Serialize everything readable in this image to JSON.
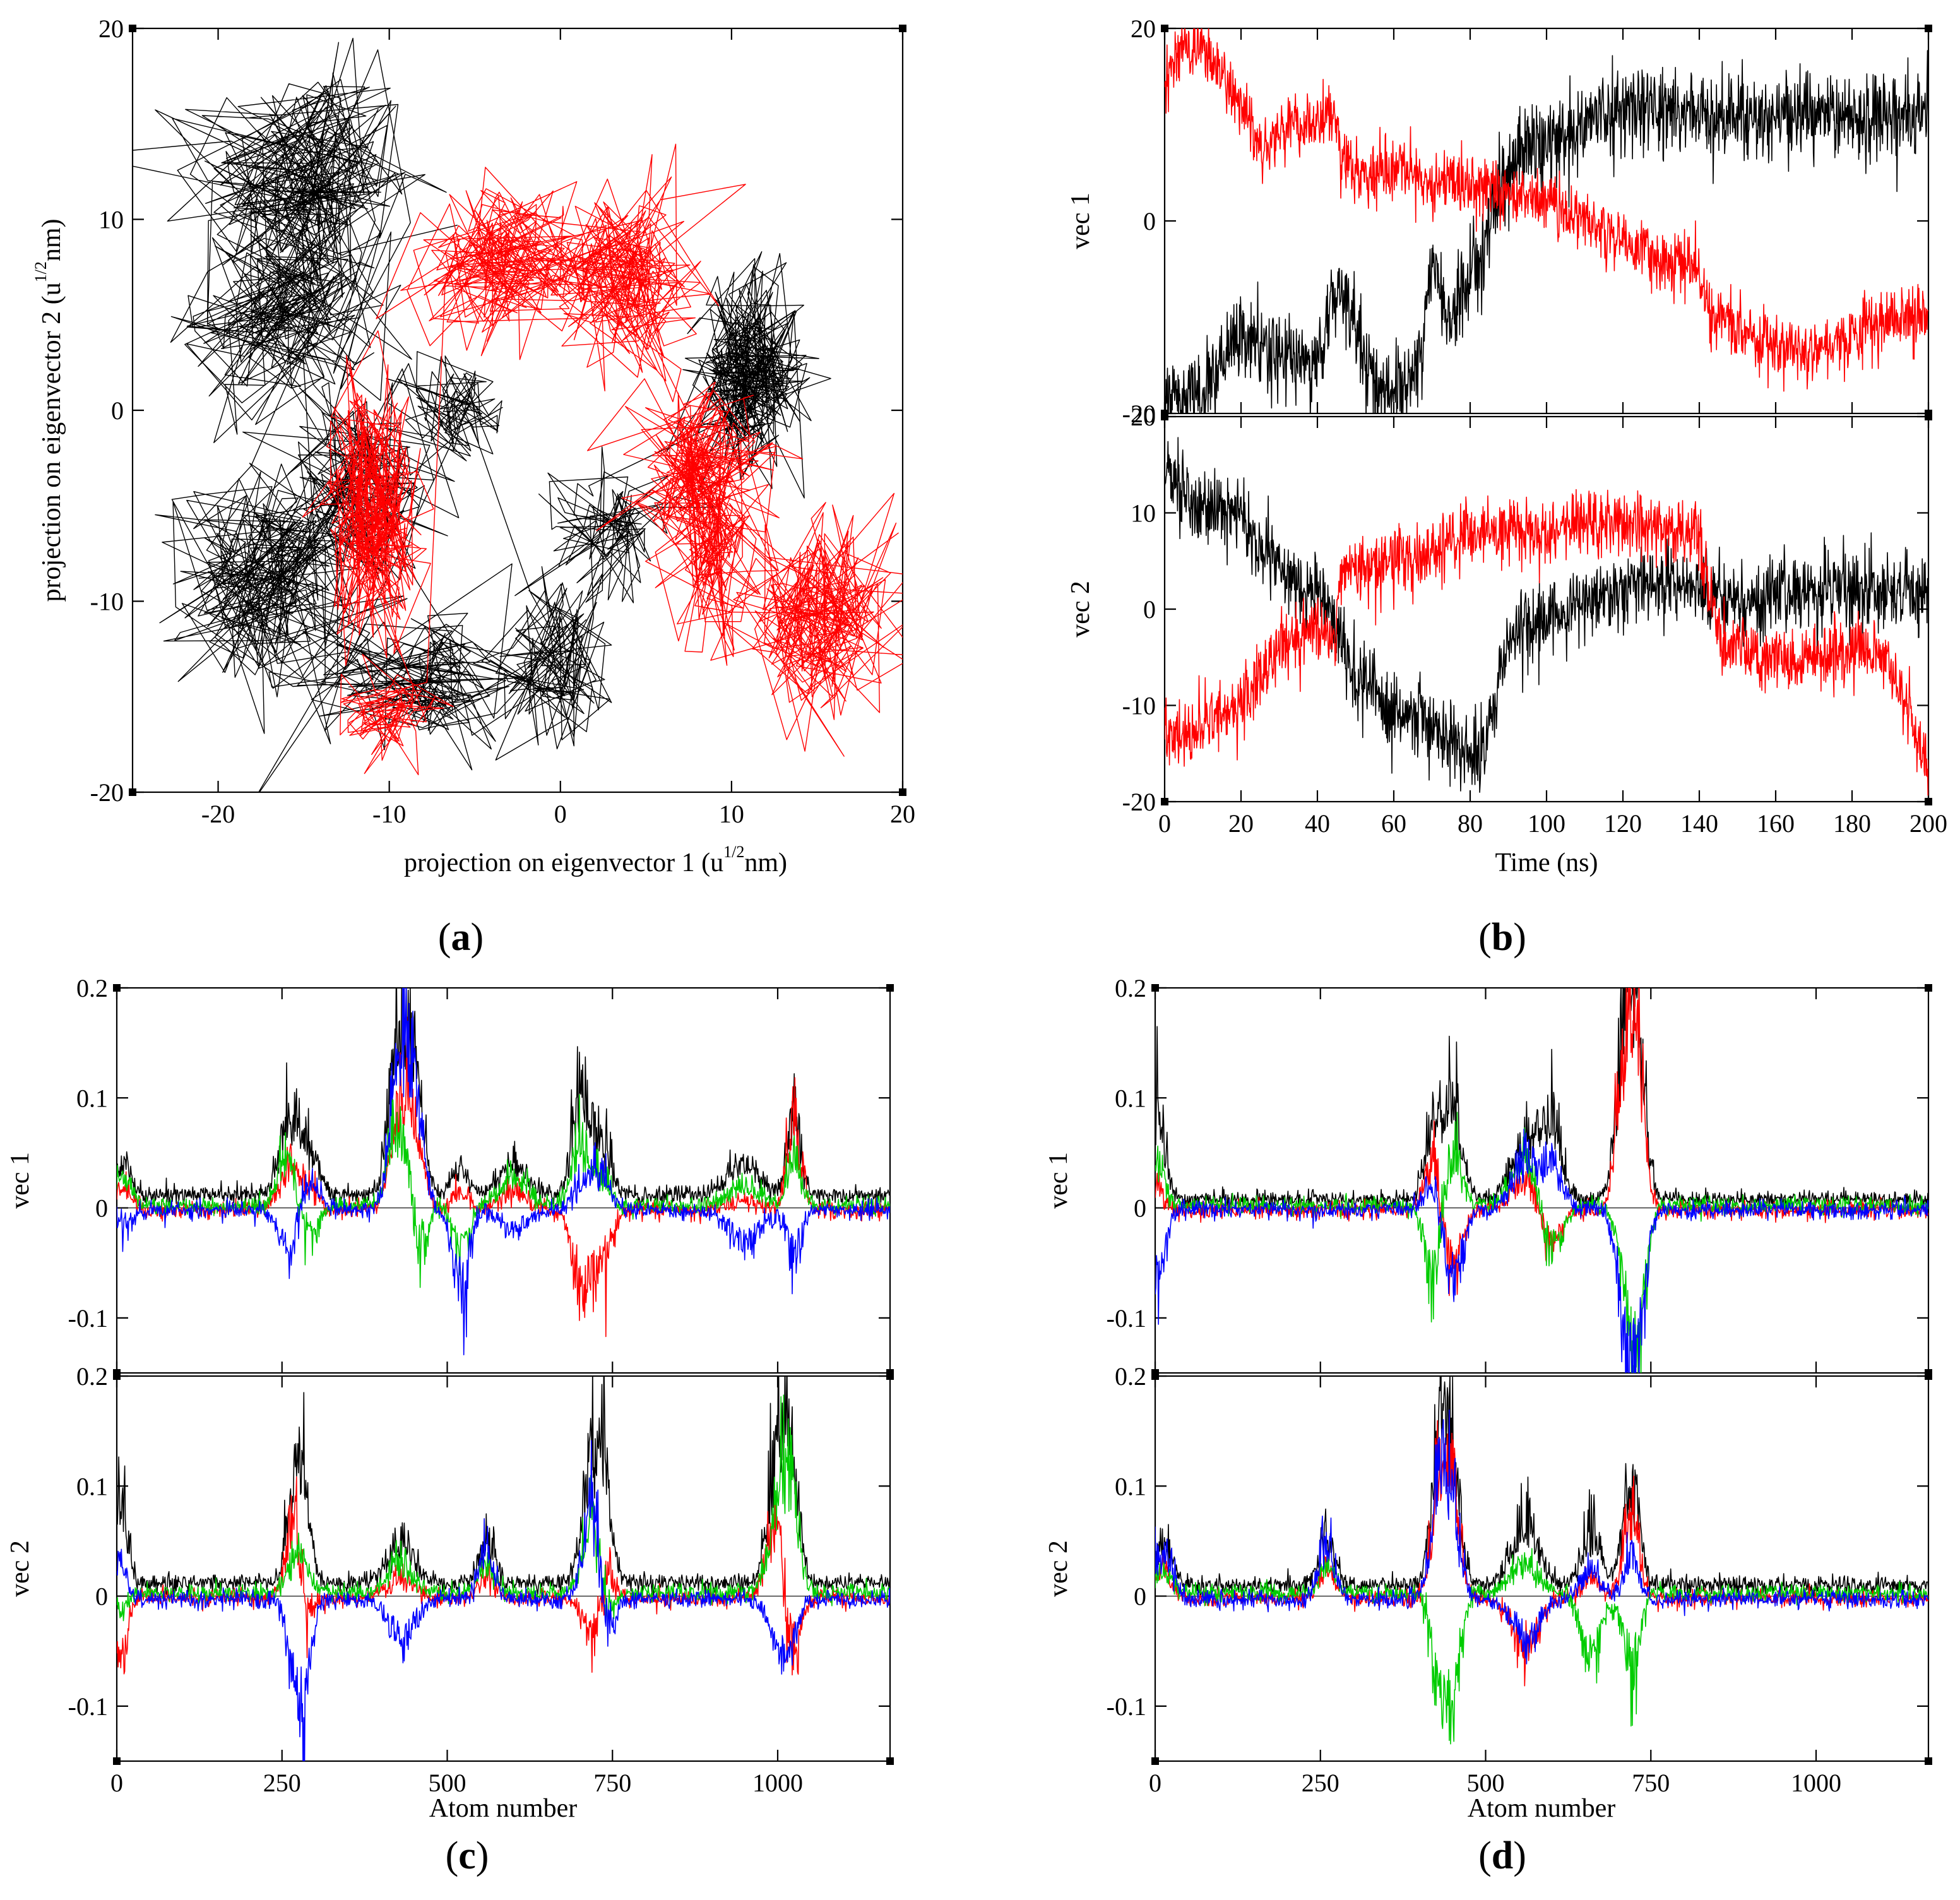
{
  "colors": {
    "black": "#000000",
    "red": "#ff0000",
    "green": "#00cc00",
    "blue": "#0000ff"
  },
  "chart_data": [
    {
      "panel": "(a)",
      "panel_letter": "a",
      "type": "scatter",
      "xlabel": "projection on eigenvector 1 (u",
      "xlabel_sup": "1/2",
      "xlabel_tail": "nm)",
      "ylabel": "projection on eigenvector 2 (u",
      "ylabel_sup": "1/2",
      "ylabel_tail": "nm)",
      "xlim": [
        -25,
        20
      ],
      "ylim": [
        -20,
        20
      ],
      "xticks": [
        -20,
        -10,
        0,
        10,
        20
      ],
      "yticks": [
        -20,
        -10,
        0,
        10,
        20
      ],
      "series": [
        {
          "color": "#000000",
          "clusters": [
            {
              "cx": -15,
              "cy": 12,
              "sx": 3.6,
              "sy": 3.5,
              "n": 260
            },
            {
              "cx": -16,
              "cy": 5,
              "sx": 3.0,
              "sy": 2.6,
              "n": 200
            },
            {
              "cx": -17,
              "cy": -9,
              "sx": 3.0,
              "sy": 3.2,
              "n": 240
            },
            {
              "cx": -12,
              "cy": -4,
              "sx": 3.0,
              "sy": 3.0,
              "n": 140
            },
            {
              "cx": -8,
              "cy": -14,
              "sx": 3.2,
              "sy": 2.0,
              "n": 150
            },
            {
              "cx": -6,
              "cy": 0,
              "sx": 2.0,
              "sy": 1.6,
              "n": 80
            },
            {
              "cx": 0,
              "cy": -13,
              "sx": 2.0,
              "sy": 2.5,
              "n": 120
            },
            {
              "cx": 3,
              "cy": -6,
              "sx": 2.0,
              "sy": 2.0,
              "n": 90
            },
            {
              "cx": 11,
              "cy": 2,
              "sx": 1.8,
              "sy": 2.6,
              "n": 300
            }
          ]
        },
        {
          "color": "#ff0000",
          "clusters": [
            {
              "cx": -11,
              "cy": -5,
              "sx": 1.5,
              "sy": 3.5,
              "n": 260
            },
            {
              "cx": -10,
              "cy": -16,
              "sx": 1.5,
              "sy": 1.3,
              "n": 90
            },
            {
              "cx": -3,
              "cy": 8,
              "sx": 3.0,
              "sy": 2.2,
              "n": 220
            },
            {
              "cx": 4,
              "cy": 7,
              "sx": 2.2,
              "sy": 2.6,
              "n": 200
            },
            {
              "cx": 8,
              "cy": -3,
              "sx": 2.2,
              "sy": 2.2,
              "n": 200
            },
            {
              "cx": 9,
              "cy": -7,
              "sx": 1.8,
              "sy": 3.0,
              "n": 120
            },
            {
              "cx": 15,
              "cy": -11,
              "sx": 2.6,
              "sy": 2.6,
              "n": 220
            }
          ]
        }
      ]
    },
    {
      "panel": "(b)",
      "panel_letter": "b",
      "type": "line",
      "xlabel": "Time (ns)",
      "xlim": [
        0,
        200
      ],
      "xticks": [
        0,
        20,
        40,
        60,
        80,
        100,
        120,
        140,
        160,
        180,
        200
      ],
      "subplots": [
        {
          "ylabel": "vec 1",
          "ylim": [
            -20,
            20
          ],
          "yticks": [
            -20,
            0,
            20
          ],
          "series": [
            {
              "color": "#000000",
              "noise": 2.2,
              "x": [
                0,
                10,
                20,
                30,
                40,
                43,
                46,
                50,
                55,
                60,
                65,
                68,
                70,
                75,
                80,
                85,
                90,
                95,
                100,
                110,
                120,
                125,
                140,
                160,
                180,
                200
              ],
              "y": [
                -19,
                -18,
                -12,
                -14,
                -15,
                -10,
                -6,
                -11,
                -17,
                -18,
                -16,
                -12,
                -4,
                -11,
                -6,
                0,
                5,
                8,
                8,
                10,
                12,
                12,
                11,
                11,
                11,
                11
              ]
            },
            {
              "color": "#ff0000",
              "noise": 1.6,
              "x": [
                0,
                5,
                10,
                20,
                25,
                30,
                35,
                40,
                45,
                46,
                50,
                60,
                70,
                80,
                90,
                100,
                110,
                120,
                130,
                140,
                142,
                144,
                150,
                160,
                170,
                180,
                190,
                200
              ],
              "y": [
                15,
                18,
                18,
                12,
                8,
                9,
                10,
                10,
                11,
                6,
                5,
                5,
                4,
                4,
                3,
                2,
                0,
                -2,
                -4,
                -5,
                -9,
                -10,
                -11,
                -13,
                -13,
                -12,
                -10,
                -10
              ]
            }
          ]
        },
        {
          "ylabel": "vec 2",
          "ylim": [
            -20,
            20
          ],
          "yticks": [
            -20,
            -10,
            0,
            10,
            20
          ],
          "series": [
            {
              "color": "#000000",
              "noise": 2.0,
              "x": [
                0,
                5,
                10,
                20,
                25,
                30,
                40,
                45,
                50,
                60,
                70,
                80,
                83,
                86,
                90,
                100,
                110,
                120,
                130,
                140,
                150,
                160,
                170,
                180,
                190,
                200
              ],
              "y": [
                15,
                12,
                10,
                10,
                6,
                4,
                2,
                -2,
                -7,
                -11,
                -12,
                -15,
                -14,
                -10,
                -3,
                -1,
                1,
                2,
                3,
                2,
                1,
                1,
                2,
                2,
                2,
                1
              ]
            },
            {
              "color": "#ff0000",
              "noise": 1.8,
              "x": [
                0,
                5,
                10,
                20,
                30,
                40,
                45,
                46,
                50,
                60,
                70,
                80,
                90,
                100,
                110,
                120,
                130,
                140,
                142,
                145,
                150,
                160,
                170,
                180,
                185,
                190,
                195,
                200
              ],
              "y": [
                -12,
                -13,
                -12,
                -10,
                -4,
                -2,
                -3,
                4,
                4,
                5,
                6,
                8,
                8,
                8,
                9,
                9,
                8,
                8,
                2,
                -3,
                -4,
                -5,
                -5,
                -4,
                -4,
                -6,
                -11,
                -17
              ]
            }
          ]
        }
      ]
    },
    {
      "panel": "(c)",
      "panel_letter": "c",
      "type": "line",
      "xlabel": "Atom number",
      "xlim": [
        0,
        1170
      ],
      "xticks": [
        0,
        250,
        500,
        750,
        1000
      ],
      "subplots": [
        {
          "ylabel": "vec 1",
          "ylim": [
            -0.15,
            0.2
          ],
          "yticks": [
            -0.1,
            0,
            0.1,
            0.2
          ],
          "peaks": [
            {
              "x": 10,
              "w": 12,
              "amp": [
                0.03,
                0.025,
                0.03,
                -0.015
              ]
            },
            {
              "x": 260,
              "w": 15,
              "amp": [
                0.07,
                0.04,
                0.05,
                -0.04
              ]
            },
            {
              "x": 290,
              "w": 15,
              "amp": [
                0.04,
                0.02,
                -0.03,
                0.03
              ]
            },
            {
              "x": 420,
              "w": 12,
              "amp": [
                0.09,
                0.05,
                0.06,
                0.08
              ]
            },
            {
              "x": 440,
              "w": 14,
              "amp": [
                0.14,
                0.1,
                0.04,
                0.13
              ]
            },
            {
              "x": 460,
              "w": 10,
              "amp": [
                0.04,
                0.03,
                -0.06,
                0.05
              ]
            },
            {
              "x": 520,
              "w": 12,
              "amp": [
                0.03,
                0.02,
                -0.04,
                -0.08
              ]
            },
            {
              "x": 600,
              "w": 20,
              "amp": [
                0.03,
                0.02,
                0.03,
                -0.02
              ]
            },
            {
              "x": 700,
              "w": 12,
              "amp": [
                0.09,
                -0.07,
                0.06,
                0.02
              ]
            },
            {
              "x": 730,
              "w": 15,
              "amp": [
                0.06,
                -0.06,
                0.03,
                0.04
              ]
            },
            {
              "x": 950,
              "w": 25,
              "amp": [
                0.03,
                0.01,
                0.02,
                -0.03
              ]
            },
            {
              "x": 1025,
              "w": 10,
              "amp": [
                0.08,
                0.09,
                0.04,
                -0.05
              ]
            }
          ],
          "baseline": [
            0.012,
            -0.002,
            0.002,
            -0.002
          ]
        },
        {
          "ylabel": "vec 2",
          "ylim": [
            -0.15,
            0.2
          ],
          "yticks": [
            -0.1,
            0,
            0.1,
            0.2
          ],
          "peaks": [
            {
              "x": 5,
              "w": 10,
              "amp": [
                0.09,
                -0.06,
                -0.02,
                0.04
              ]
            },
            {
              "x": 270,
              "w": 12,
              "amp": [
                0.1,
                0.09,
                0.03,
                -0.06
              ]
            },
            {
              "x": 285,
              "w": 10,
              "amp": [
                0.06,
                -0.04,
                0.02,
                -0.08
              ]
            },
            {
              "x": 430,
              "w": 20,
              "amp": [
                0.04,
                0.02,
                0.03,
                -0.04
              ]
            },
            {
              "x": 560,
              "w": 12,
              "amp": [
                0.04,
                0.02,
                0.03,
                0.05
              ]
            },
            {
              "x": 720,
              "w": 14,
              "amp": [
                0.13,
                -0.04,
                0.08,
                0.1
              ]
            },
            {
              "x": 740,
              "w": 12,
              "amp": [
                0.06,
                0.03,
                -0.03,
                -0.05
              ]
            },
            {
              "x": 1000,
              "w": 15,
              "amp": [
                0.12,
                0.09,
                0.07,
                -0.04
              ]
            },
            {
              "x": 1020,
              "w": 12,
              "amp": [
                0.1,
                -0.08,
                0.09,
                -0.03
              ]
            }
          ],
          "baseline": [
            0.012,
            -0.002,
            0.003,
            -0.003
          ]
        }
      ]
    },
    {
      "panel": "(d)",
      "panel_letter": "d",
      "type": "line",
      "xlabel": "Atom number",
      "xlim": [
        0,
        1170
      ],
      "xticks": [
        0,
        250,
        500,
        750,
        1000
      ],
      "subplots": [
        {
          "ylabel": "vec 1",
          "ylim": [
            -0.15,
            0.2
          ],
          "yticks": [
            -0.1,
            0,
            0.1,
            0.2
          ],
          "peaks": [
            {
              "x": 5,
              "w": 10,
              "amp": [
                0.1,
                0.02,
                0.04,
                -0.07
              ]
            },
            {
              "x": 420,
              "w": 12,
              "amp": [
                0.08,
                0.05,
                -0.08,
                0.03
              ]
            },
            {
              "x": 450,
              "w": 14,
              "amp": [
                0.09,
                -0.06,
                0.05,
                -0.07
              ]
            },
            {
              "x": 560,
              "w": 20,
              "amp": [
                0.06,
                0.03,
                0.05,
                0.05
              ]
            },
            {
              "x": 600,
              "w": 15,
              "amp": [
                0.07,
                -0.04,
                -0.05,
                0.04
              ]
            },
            {
              "x": 710,
              "w": 12,
              "amp": [
                0.17,
                0.14,
                -0.05,
                -0.1
              ]
            },
            {
              "x": 730,
              "w": 12,
              "amp": [
                0.15,
                0.12,
                -0.14,
                -0.12
              ]
            }
          ],
          "baseline": [
            0.008,
            -0.002,
            0.002,
            -0.002
          ]
        },
        {
          "ylabel": "vec 2",
          "ylim": [
            -0.15,
            0.2
          ],
          "yticks": [
            -0.1,
            0,
            0.1,
            0.2
          ],
          "peaks": [
            {
              "x": 10,
              "w": 15,
              "amp": [
                0.04,
                0.03,
                0.02,
                0.05
              ]
            },
            {
              "x": 260,
              "w": 12,
              "amp": [
                0.05,
                0.03,
                0.03,
                0.06
              ]
            },
            {
              "x": 430,
              "w": 12,
              "amp": [
                0.15,
                0.11,
                -0.08,
                0.12
              ]
            },
            {
              "x": 450,
              "w": 12,
              "amp": [
                0.12,
                0.1,
                -0.09,
                0.08
              ]
            },
            {
              "x": 560,
              "w": 20,
              "amp": [
                0.06,
                -0.05,
                0.03,
                -0.04
              ]
            },
            {
              "x": 660,
              "w": 15,
              "amp": [
                0.05,
                0.02,
                -0.07,
                0.03
              ]
            },
            {
              "x": 720,
              "w": 12,
              "amp": [
                0.1,
                0.09,
                -0.07,
                0.04
              ]
            }
          ],
          "baseline": [
            0.01,
            -0.002,
            0.003,
            -0.003
          ]
        }
      ]
    }
  ]
}
